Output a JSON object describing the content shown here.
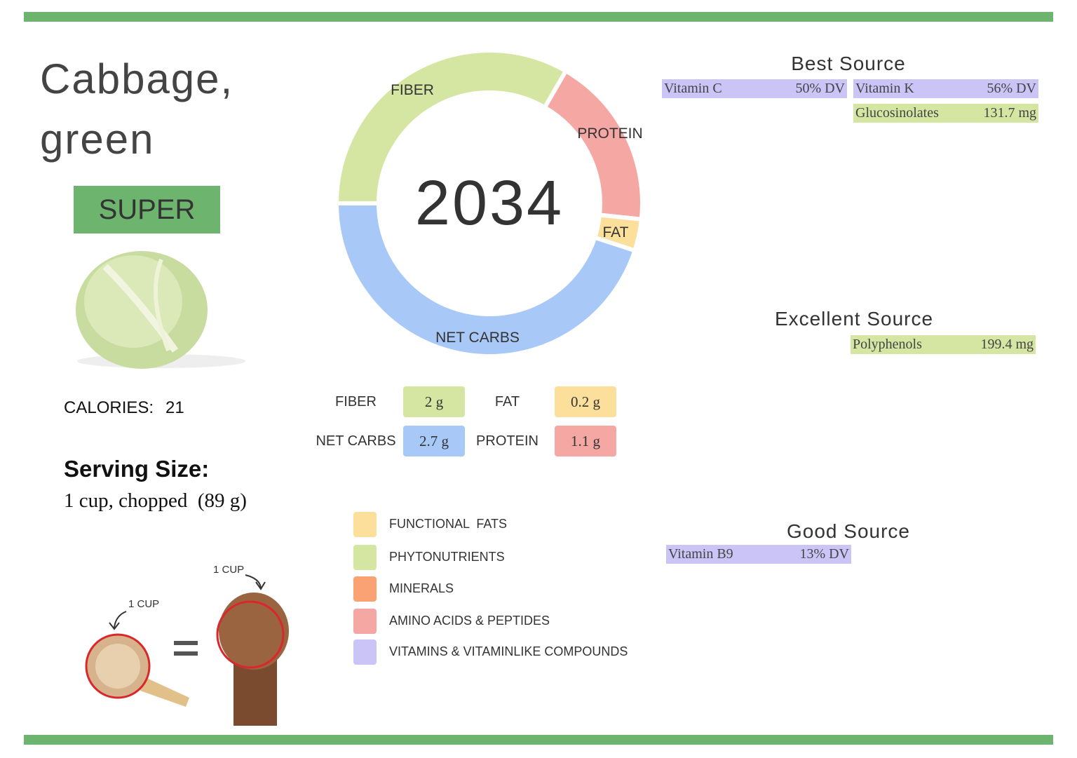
{
  "header": {
    "title": "Cabbage, green",
    "badge": "SUPER"
  },
  "calories": {
    "label": "CALORIES:",
    "value": 21
  },
  "serving": {
    "heading": "Serving Size:",
    "amount": "1 cup, chopped  (89 g)",
    "cup_label": "1 CUP",
    "fist_label": "1 CUP"
  },
  "score": 2034,
  "macros": [
    {
      "name": "FIBER",
      "value": 2,
      "label": "2 g",
      "color": "#d5e6a3"
    },
    {
      "name": "PROTEIN",
      "value": 1.1,
      "label": "1.1 g",
      "color": "#f4a7a3"
    },
    {
      "name": "FAT",
      "value": 0.2,
      "label": "0.2 g",
      "color": "#fbdf9a"
    },
    {
      "name": "NET CARBS",
      "value": 2.7,
      "label": "2.7 g",
      "color": "#a8c8f8"
    }
  ],
  "legend": [
    {
      "label": "FUNCTIONAL  FATS",
      "color": "#fbdf9a"
    },
    {
      "label": "PHYTONUTRIENTS",
      "color": "#d5e6a3"
    },
    {
      "label": "MINERALS",
      "color": "#fba274"
    },
    {
      "label": "AMINO ACIDS & PEPTIDES",
      "color": "#f4a7a3"
    },
    {
      "label": "VITAMINS & VITAMINLIKE COMPOUNDS",
      "color": "#cbc5f7"
    }
  ],
  "sources": [
    {
      "heading": "Best Source",
      "items": [
        {
          "name": "Vitamin C",
          "amount": "50% DV",
          "color": "#cbc5f7"
        },
        {
          "name": "Vitamin K",
          "amount": "56% DV",
          "color": "#cbc5f7"
        },
        {
          "name": "Glucosinolates",
          "amount": "131.7 mg",
          "color": "#d5e6a3"
        }
      ]
    },
    {
      "heading": "Excellent Source",
      "items": [
        {
          "name": "Polyphenols",
          "amount": "199.4 mg",
          "color": "#d5e6a3"
        }
      ]
    },
    {
      "heading": "Good Source",
      "items": [
        {
          "name": "Vitamin B9",
          "amount": "13% DV",
          "color": "#cbc5f7"
        }
      ]
    }
  ]
}
